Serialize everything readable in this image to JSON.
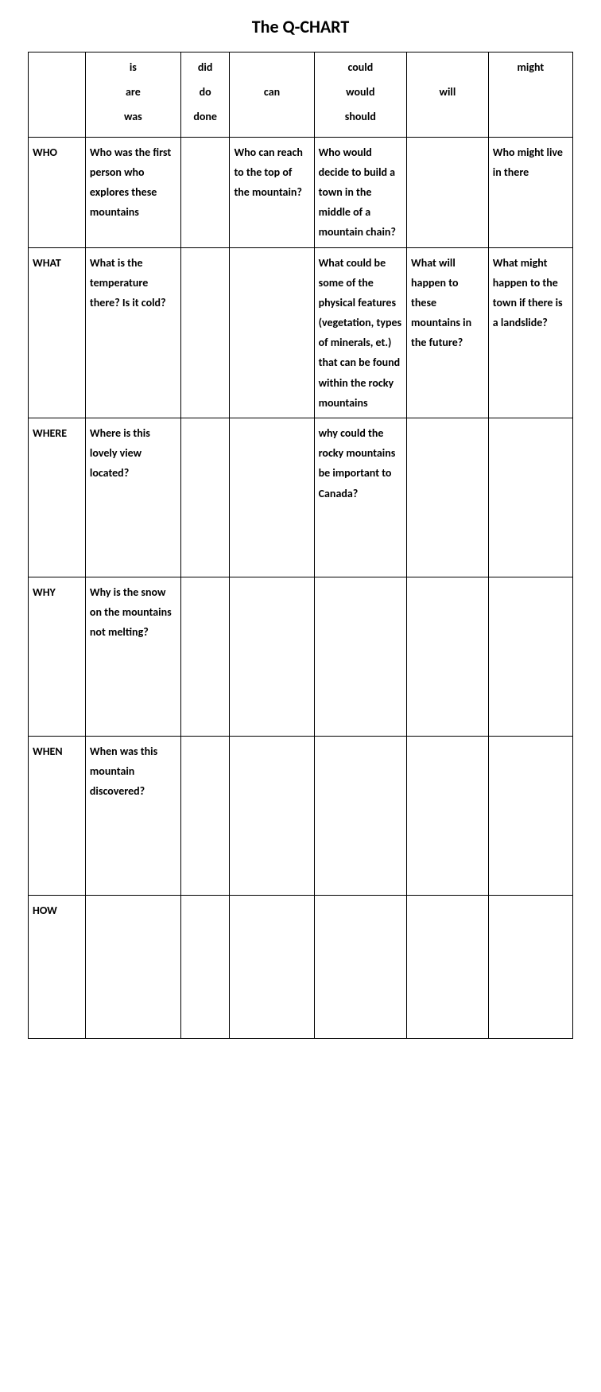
{
  "title": "The Q-CHART",
  "columns": {
    "blank": "",
    "c1": [
      "is",
      "are",
      "was"
    ],
    "c2": [
      "did",
      "do",
      "done"
    ],
    "c3": [
      "can"
    ],
    "c4": [
      "could",
      "would",
      "should"
    ],
    "c5": [
      "will"
    ],
    "c6": [
      "might"
    ]
  },
  "row_labels": [
    "WHO",
    "WHAT",
    "WHERE",
    "WHY",
    "WHEN",
    "HOW"
  ],
  "cells": {
    "WHO": {
      "c1": "Who was the first person who explores these mountains",
      "c2": "",
      "c3": "Who can reach to the top of the mountain?",
      "c4": "Who would decide to build a town in the middle of a mountain chain?",
      "c5": "",
      "c6": "Who might live in there"
    },
    "WHAT": {
      "c1": "What is the temperature there? Is it cold?",
      "c2": "",
      "c3": "",
      "c4": "What could be some of the physical features (vegetation, types of minerals, et.) that can be found within the rocky mountains",
      "c5": "What will happen to these mountains in the future?",
      "c6": "What might happen to the town if there is a landslide?"
    },
    "WHERE": {
      "c1": "Where is this lovely view located?",
      "c2": "",
      "c3": "",
      "c4": "why could the rocky mountains be important to Canada?",
      "c5": "",
      "c6": ""
    },
    "WHY": {
      "c1": "Why is the snow on the mountains not melting?",
      "c2": "",
      "c3": "",
      "c4": "",
      "c5": "",
      "c6": ""
    },
    "WHEN": {
      "c1": "When was this mountain discovered?",
      "c2": "",
      "c3": "",
      "c4": "",
      "c5": "",
      "c6": ""
    },
    "HOW": {
      "c1": "",
      "c2": "",
      "c3": "",
      "c4": "",
      "c5": "",
      "c6": ""
    }
  },
  "styling": {
    "font_family": "Calibri",
    "title_fontsize": 22,
    "cell_fontsize": 14,
    "border_color": "#000000",
    "text_color": "#000000",
    "background_color": "#ffffff",
    "font_weight": "bold",
    "line_height": 1.8
  }
}
